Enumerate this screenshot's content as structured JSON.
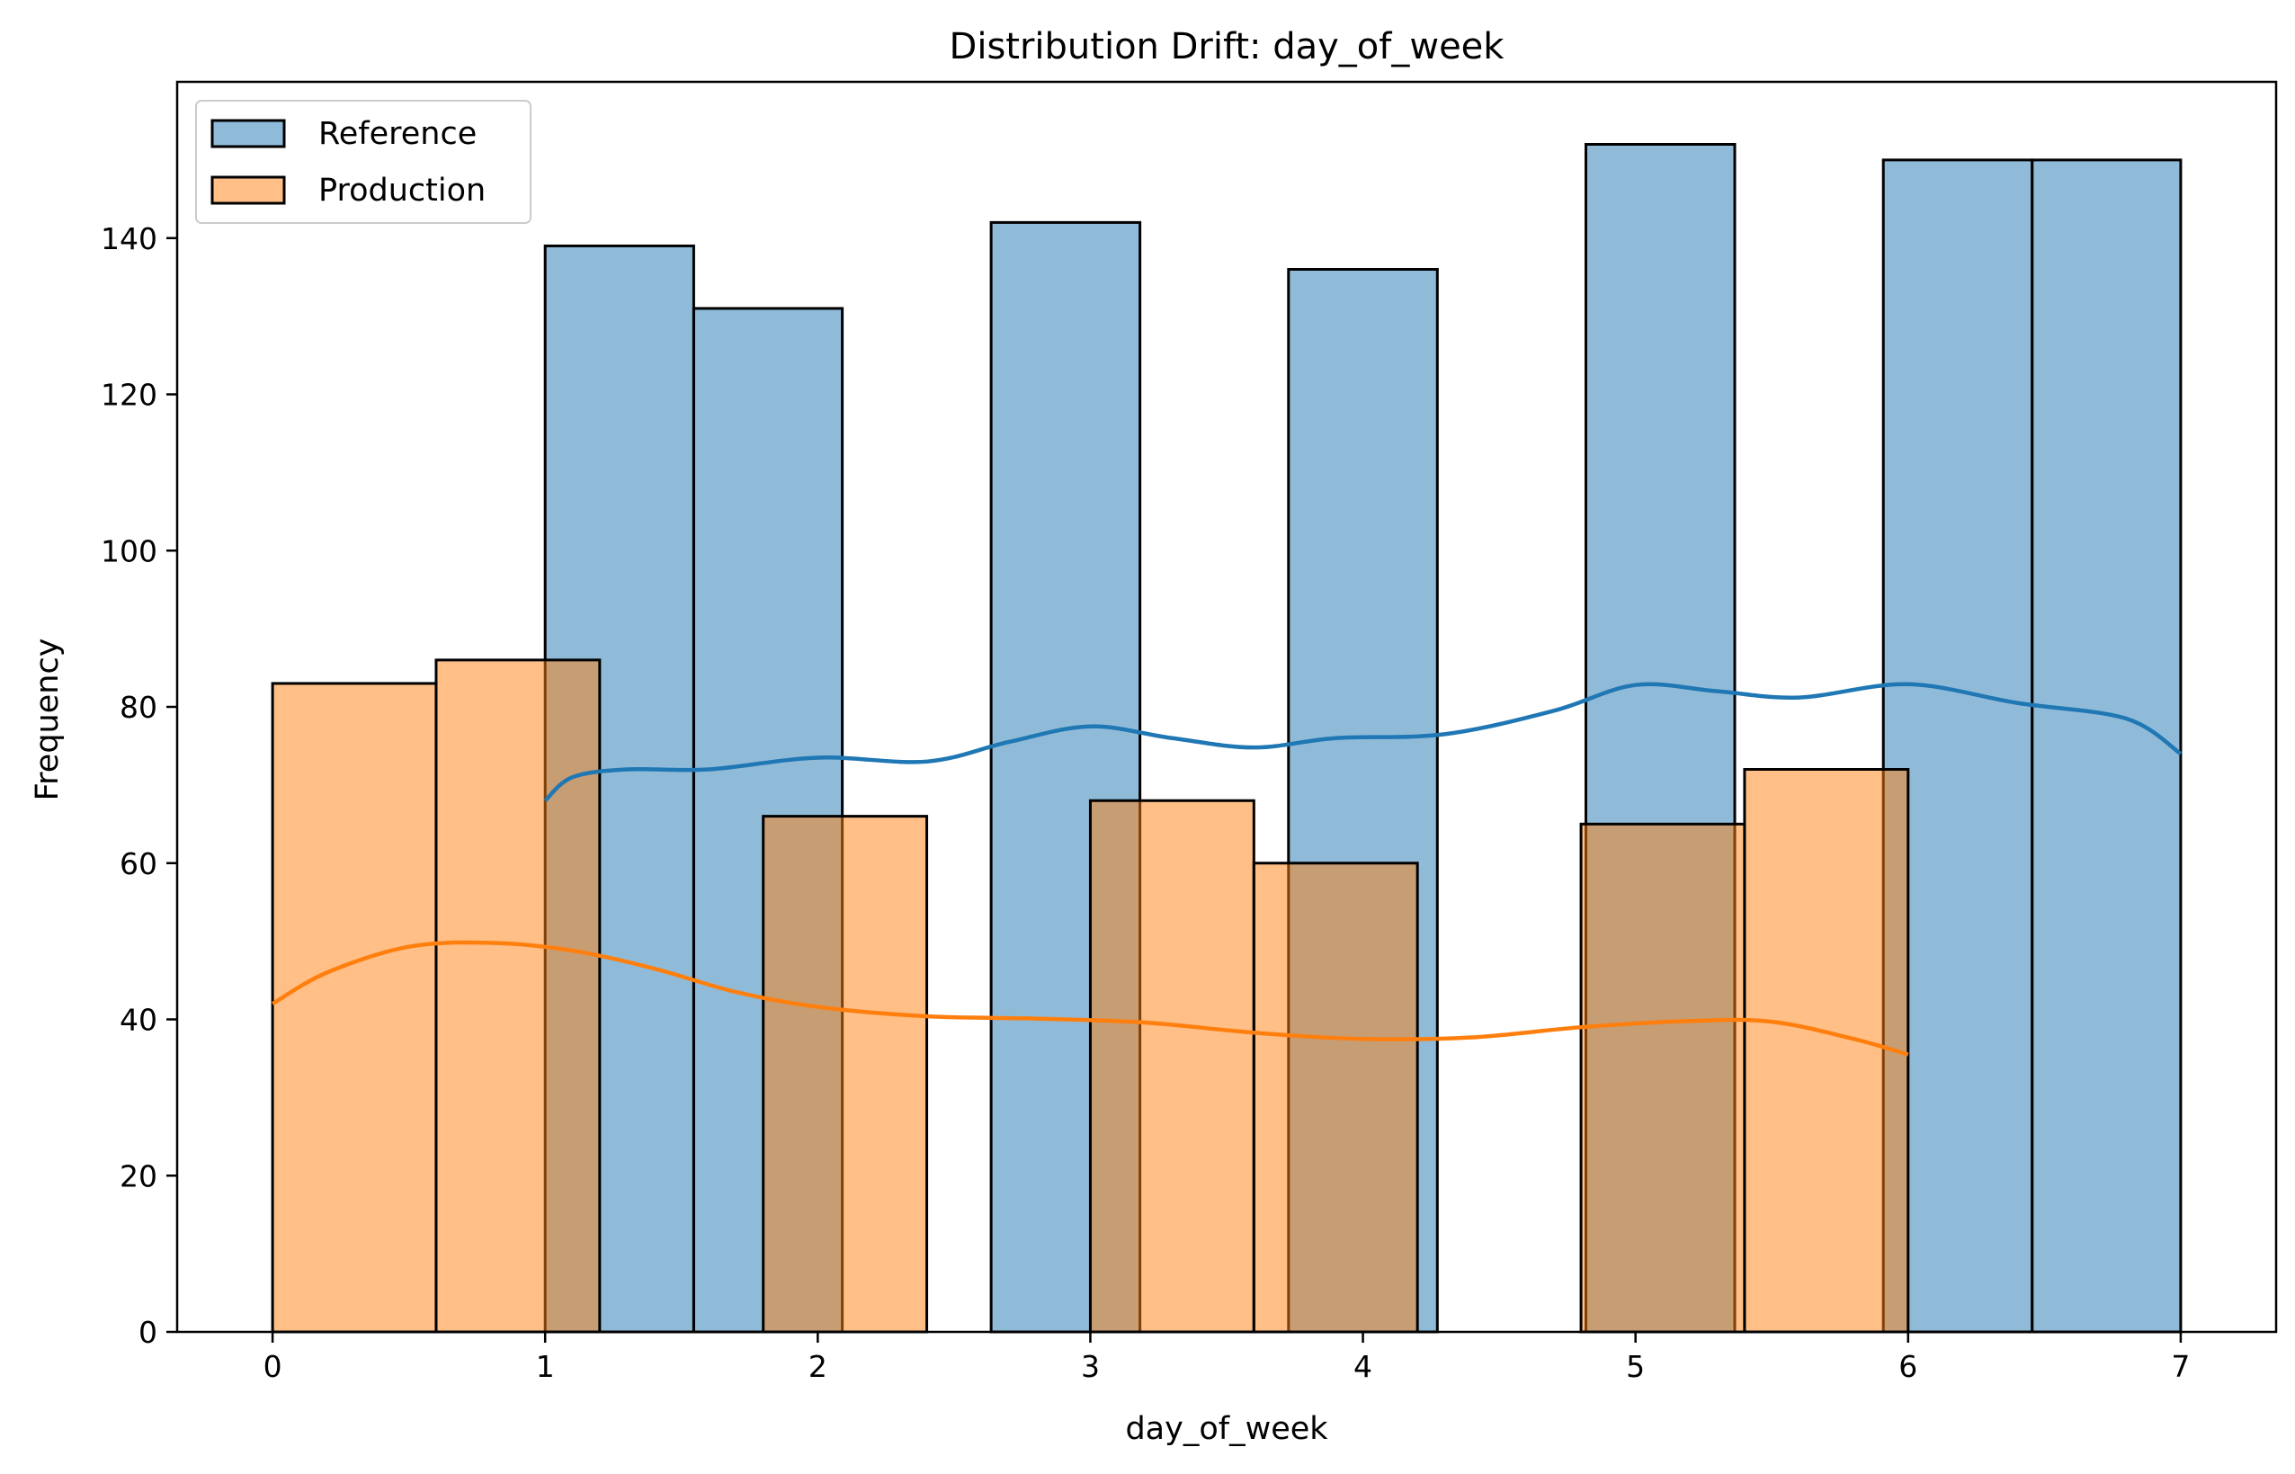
{
  "chart_data": {
    "type": "histogram",
    "title": "Distribution Drift: day_of_week",
    "xlabel": "day_of_week",
    "ylabel": "Frequency",
    "xlim": [
      -0.35,
      7.35
    ],
    "ylim": [
      0,
      160
    ],
    "xticks": [
      0,
      1,
      2,
      3,
      4,
      5,
      6,
      7
    ],
    "yticks": [
      0,
      20,
      40,
      60,
      80,
      100,
      120,
      140
    ],
    "grid": false,
    "legend_position": "top-left",
    "series": [
      {
        "name": "Reference",
        "color": "#1f77b4",
        "bins": [
          {
            "x0": 1.0,
            "x1": 1.545,
            "count": 139
          },
          {
            "x0": 1.545,
            "x1": 2.09,
            "count": 131
          },
          {
            "x0": 2.09,
            "x1": 2.636,
            "count": 0
          },
          {
            "x0": 2.636,
            "x1": 3.182,
            "count": 142
          },
          {
            "x0": 3.182,
            "x1": 3.727,
            "count": 0
          },
          {
            "x0": 3.727,
            "x1": 4.273,
            "count": 136
          },
          {
            "x0": 4.273,
            "x1": 4.818,
            "count": 0
          },
          {
            "x0": 4.818,
            "x1": 5.364,
            "count": 152
          },
          {
            "x0": 5.364,
            "x1": 5.909,
            "count": 0
          },
          {
            "x0": 5.909,
            "x1": 6.455,
            "count": 150
          },
          {
            "x0": 6.455,
            "x1": 7.0,
            "count": 150
          }
        ],
        "kde": [
          [
            1.0,
            68
          ],
          [
            1.1,
            71
          ],
          [
            1.3,
            72
          ],
          [
            1.6,
            72
          ],
          [
            2.0,
            73.5
          ],
          [
            2.4,
            73
          ],
          [
            2.7,
            75.5
          ],
          [
            3.0,
            77.5
          ],
          [
            3.3,
            76
          ],
          [
            3.6,
            74.8
          ],
          [
            3.9,
            76
          ],
          [
            4.3,
            76.5
          ],
          [
            4.7,
            79.5
          ],
          [
            5.0,
            82.8
          ],
          [
            5.3,
            82
          ],
          [
            5.6,
            81.2
          ],
          [
            6.0,
            82.9
          ],
          [
            6.4,
            80.5
          ],
          [
            6.8,
            78.5
          ],
          [
            7.0,
            74
          ]
        ]
      },
      {
        "name": "Production",
        "color": "#ff7f0e",
        "bins": [
          {
            "x0": 0.0,
            "x1": 0.6,
            "count": 83
          },
          {
            "x0": 0.6,
            "x1": 1.2,
            "count": 86
          },
          {
            "x0": 1.2,
            "x1": 1.8,
            "count": 0
          },
          {
            "x0": 1.8,
            "x1": 2.4,
            "count": 66
          },
          {
            "x0": 2.4,
            "x1": 3.0,
            "count": 0
          },
          {
            "x0": 3.0,
            "x1": 3.6,
            "count": 68
          },
          {
            "x0": 3.6,
            "x1": 4.2,
            "count": 60
          },
          {
            "x0": 4.2,
            "x1": 4.8,
            "count": 0
          },
          {
            "x0": 4.8,
            "x1": 5.4,
            "count": 65
          },
          {
            "x0": 5.4,
            "x1": 6.0,
            "count": 72
          }
        ],
        "kde": [
          [
            0.0,
            42
          ],
          [
            0.2,
            46
          ],
          [
            0.5,
            49.3
          ],
          [
            0.8,
            49.8
          ],
          [
            1.1,
            48.8
          ],
          [
            1.4,
            46.5
          ],
          [
            1.7,
            43.5
          ],
          [
            2.0,
            41.6
          ],
          [
            2.4,
            40.4
          ],
          [
            2.8,
            40.1
          ],
          [
            3.2,
            39.6
          ],
          [
            3.6,
            38.3
          ],
          [
            4.0,
            37.5
          ],
          [
            4.4,
            37.7
          ],
          [
            4.8,
            39
          ],
          [
            5.2,
            39.8
          ],
          [
            5.5,
            39.7
          ],
          [
            5.8,
            37.5
          ],
          [
            6.0,
            35.5
          ]
        ]
      }
    ]
  }
}
